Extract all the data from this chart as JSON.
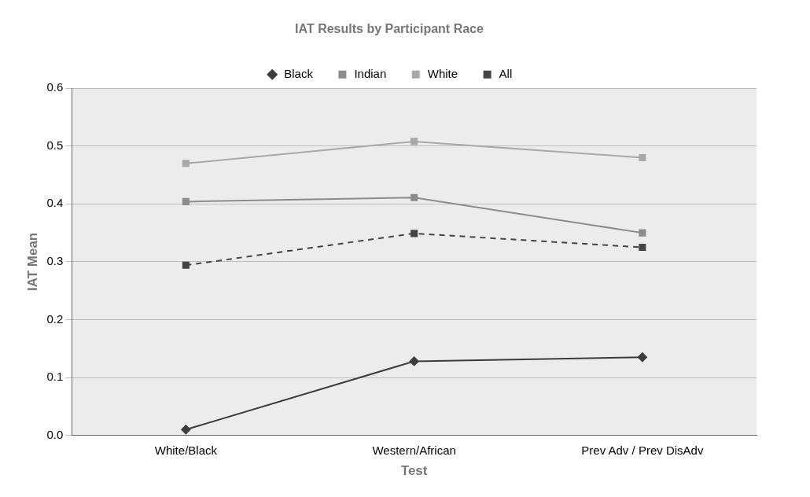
{
  "chart_data": {
    "type": "line",
    "title": "IAT Results by Participant Race",
    "xlabel": "Test",
    "ylabel": "IAT Mean",
    "categories": [
      "White/Black",
      "Western/African",
      "Prev Adv / Prev DisAdv"
    ],
    "series": [
      {
        "name": "Black",
        "color": "#3c3c3c",
        "values": [
          0.01,
          0.128,
          0.135
        ],
        "marker": "diamond",
        "line_style": "solid"
      },
      {
        "name": "Indian",
        "color": "#8c8c8c",
        "values": [
          0.404,
          0.411,
          0.35
        ],
        "marker": "square",
        "line_style": "solid"
      },
      {
        "name": "White",
        "color": "#a8a8a8",
        "values": [
          0.47,
          0.508,
          0.48
        ],
        "marker": "square",
        "line_style": "solid"
      },
      {
        "name": "All",
        "color": "#444444",
        "values": [
          0.294,
          0.349,
          0.325
        ],
        "marker": "square",
        "line_style": "dashed"
      }
    ],
    "ylim": [
      0,
      0.6
    ],
    "yticks": [
      {
        "value": 0,
        "label": "0.0"
      },
      {
        "value": 0.1,
        "label": "0.1"
      },
      {
        "value": 0.2,
        "label": "0.2"
      },
      {
        "value": 0.3,
        "label": "0.3"
      },
      {
        "value": 0.4,
        "label": "0.4"
      },
      {
        "value": 0.5,
        "label": "0.5"
      },
      {
        "value": 0.6,
        "label": "0.6"
      }
    ],
    "grid": "y",
    "legend": "top"
  }
}
